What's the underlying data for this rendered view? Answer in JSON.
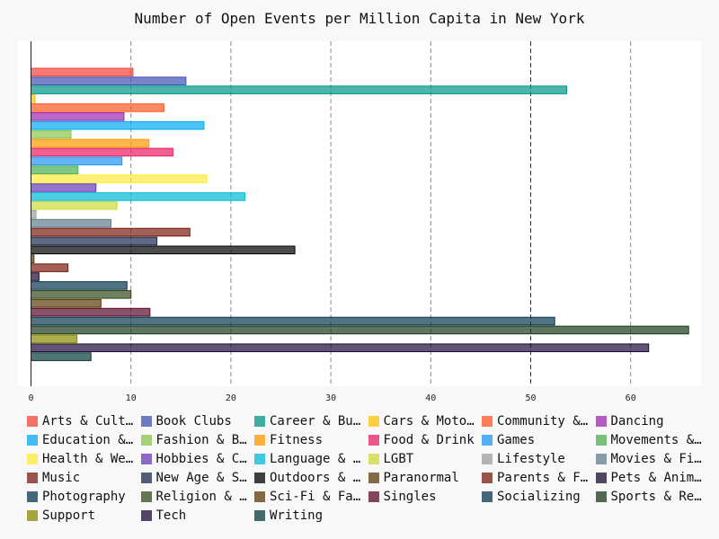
{
  "chart_data": {
    "type": "bar",
    "orientation": "horizontal",
    "title": "Number of Open Events per Million Capita in New York",
    "xlabel": "",
    "ylabel": "",
    "xlim": [
      0,
      66
    ],
    "x_ticks": [
      0,
      10,
      20,
      30,
      40,
      50,
      60
    ],
    "grid": "vertical dashed",
    "legend_position": "bottom",
    "categories": [
      "Arts & Culture",
      "Book Clubs",
      "Career & Business",
      "Cars & Motorcycles",
      "Community & Environment",
      "Dancing",
      "Education & Learning",
      "Fashion & Beauty",
      "Fitness",
      "Food & Drink",
      "Games",
      "Movements & Politics",
      "Health & Wellbeing",
      "Hobbies & Crafts",
      "Language & Ethnic Identity",
      "LGBT",
      "Lifestyle",
      "Movies & Film",
      "Music",
      "New Age & Spirituality",
      "Outdoors & Adventure",
      "Paranormal",
      "Parents & Family",
      "Pets & Animals",
      "Photography",
      "Religion & Beliefs",
      "Sci-Fi & Fantasy",
      "Singles",
      "Socializing",
      "Sports & Recreation",
      "Support",
      "Tech",
      "Writing"
    ],
    "legend_labels": [
      "Arts & Cultu…",
      "Book Clubs",
      "Career & Bus…",
      "Cars & Motor…",
      "Community & …",
      "Dancing",
      "Education & …",
      "Fashion & Be…",
      "Fitness",
      "Food & Drink",
      "Games",
      "Movements & …",
      "Health & Wel…",
      "Hobbies & Cr…",
      "Language & E…",
      "LGBT",
      "Lifestyle",
      "Movies & Film",
      "Music",
      "New Age & Sp…",
      "Outdoors & A…",
      "Paranormal",
      "Parents & Fa…",
      "Pets & Anima…",
      "Photography",
      "Religion & B…",
      "Sci-Fi & Fan…",
      "Singles",
      "Socializing",
      "Sports & Rec…",
      "Support",
      "Tech",
      "Writing"
    ],
    "values": [
      10.2,
      15.5,
      53.6,
      0.4,
      13.3,
      9.3,
      17.3,
      4.0,
      11.8,
      14.2,
      9.1,
      4.7,
      17.6,
      6.5,
      21.4,
      8.6,
      0.5,
      8.0,
      15.9,
      12.6,
      26.4,
      0.3,
      3.7,
      0.8,
      9.6,
      10.0,
      7.0,
      11.9,
      52.4,
      65.8,
      4.6,
      61.8,
      6.0
    ],
    "colors": [
      "#f44336",
      "#3f51b5",
      "#009688",
      "#ffc107",
      "#ff5722",
      "#9c27b0",
      "#03a9f4",
      "#8bc34a",
      "#ff9800",
      "#e91e63",
      "#2196f3",
      "#4caf50",
      "#ffeb3b",
      "#673ab7",
      "#00bcd4",
      "#cddc39",
      "#9e9e9e",
      "#607d8b",
      "#7b1c10",
      "#1c2a50",
      "#000000",
      "#5a3a08",
      "#7b1c10",
      "#1c0a30",
      "#08374f",
      "#324a1c",
      "#5a3a08",
      "#5a0a2a",
      "#08374f",
      "#1a3a1a",
      "#8a8a00",
      "#1c0a3a",
      "#083a3a"
    ]
  }
}
